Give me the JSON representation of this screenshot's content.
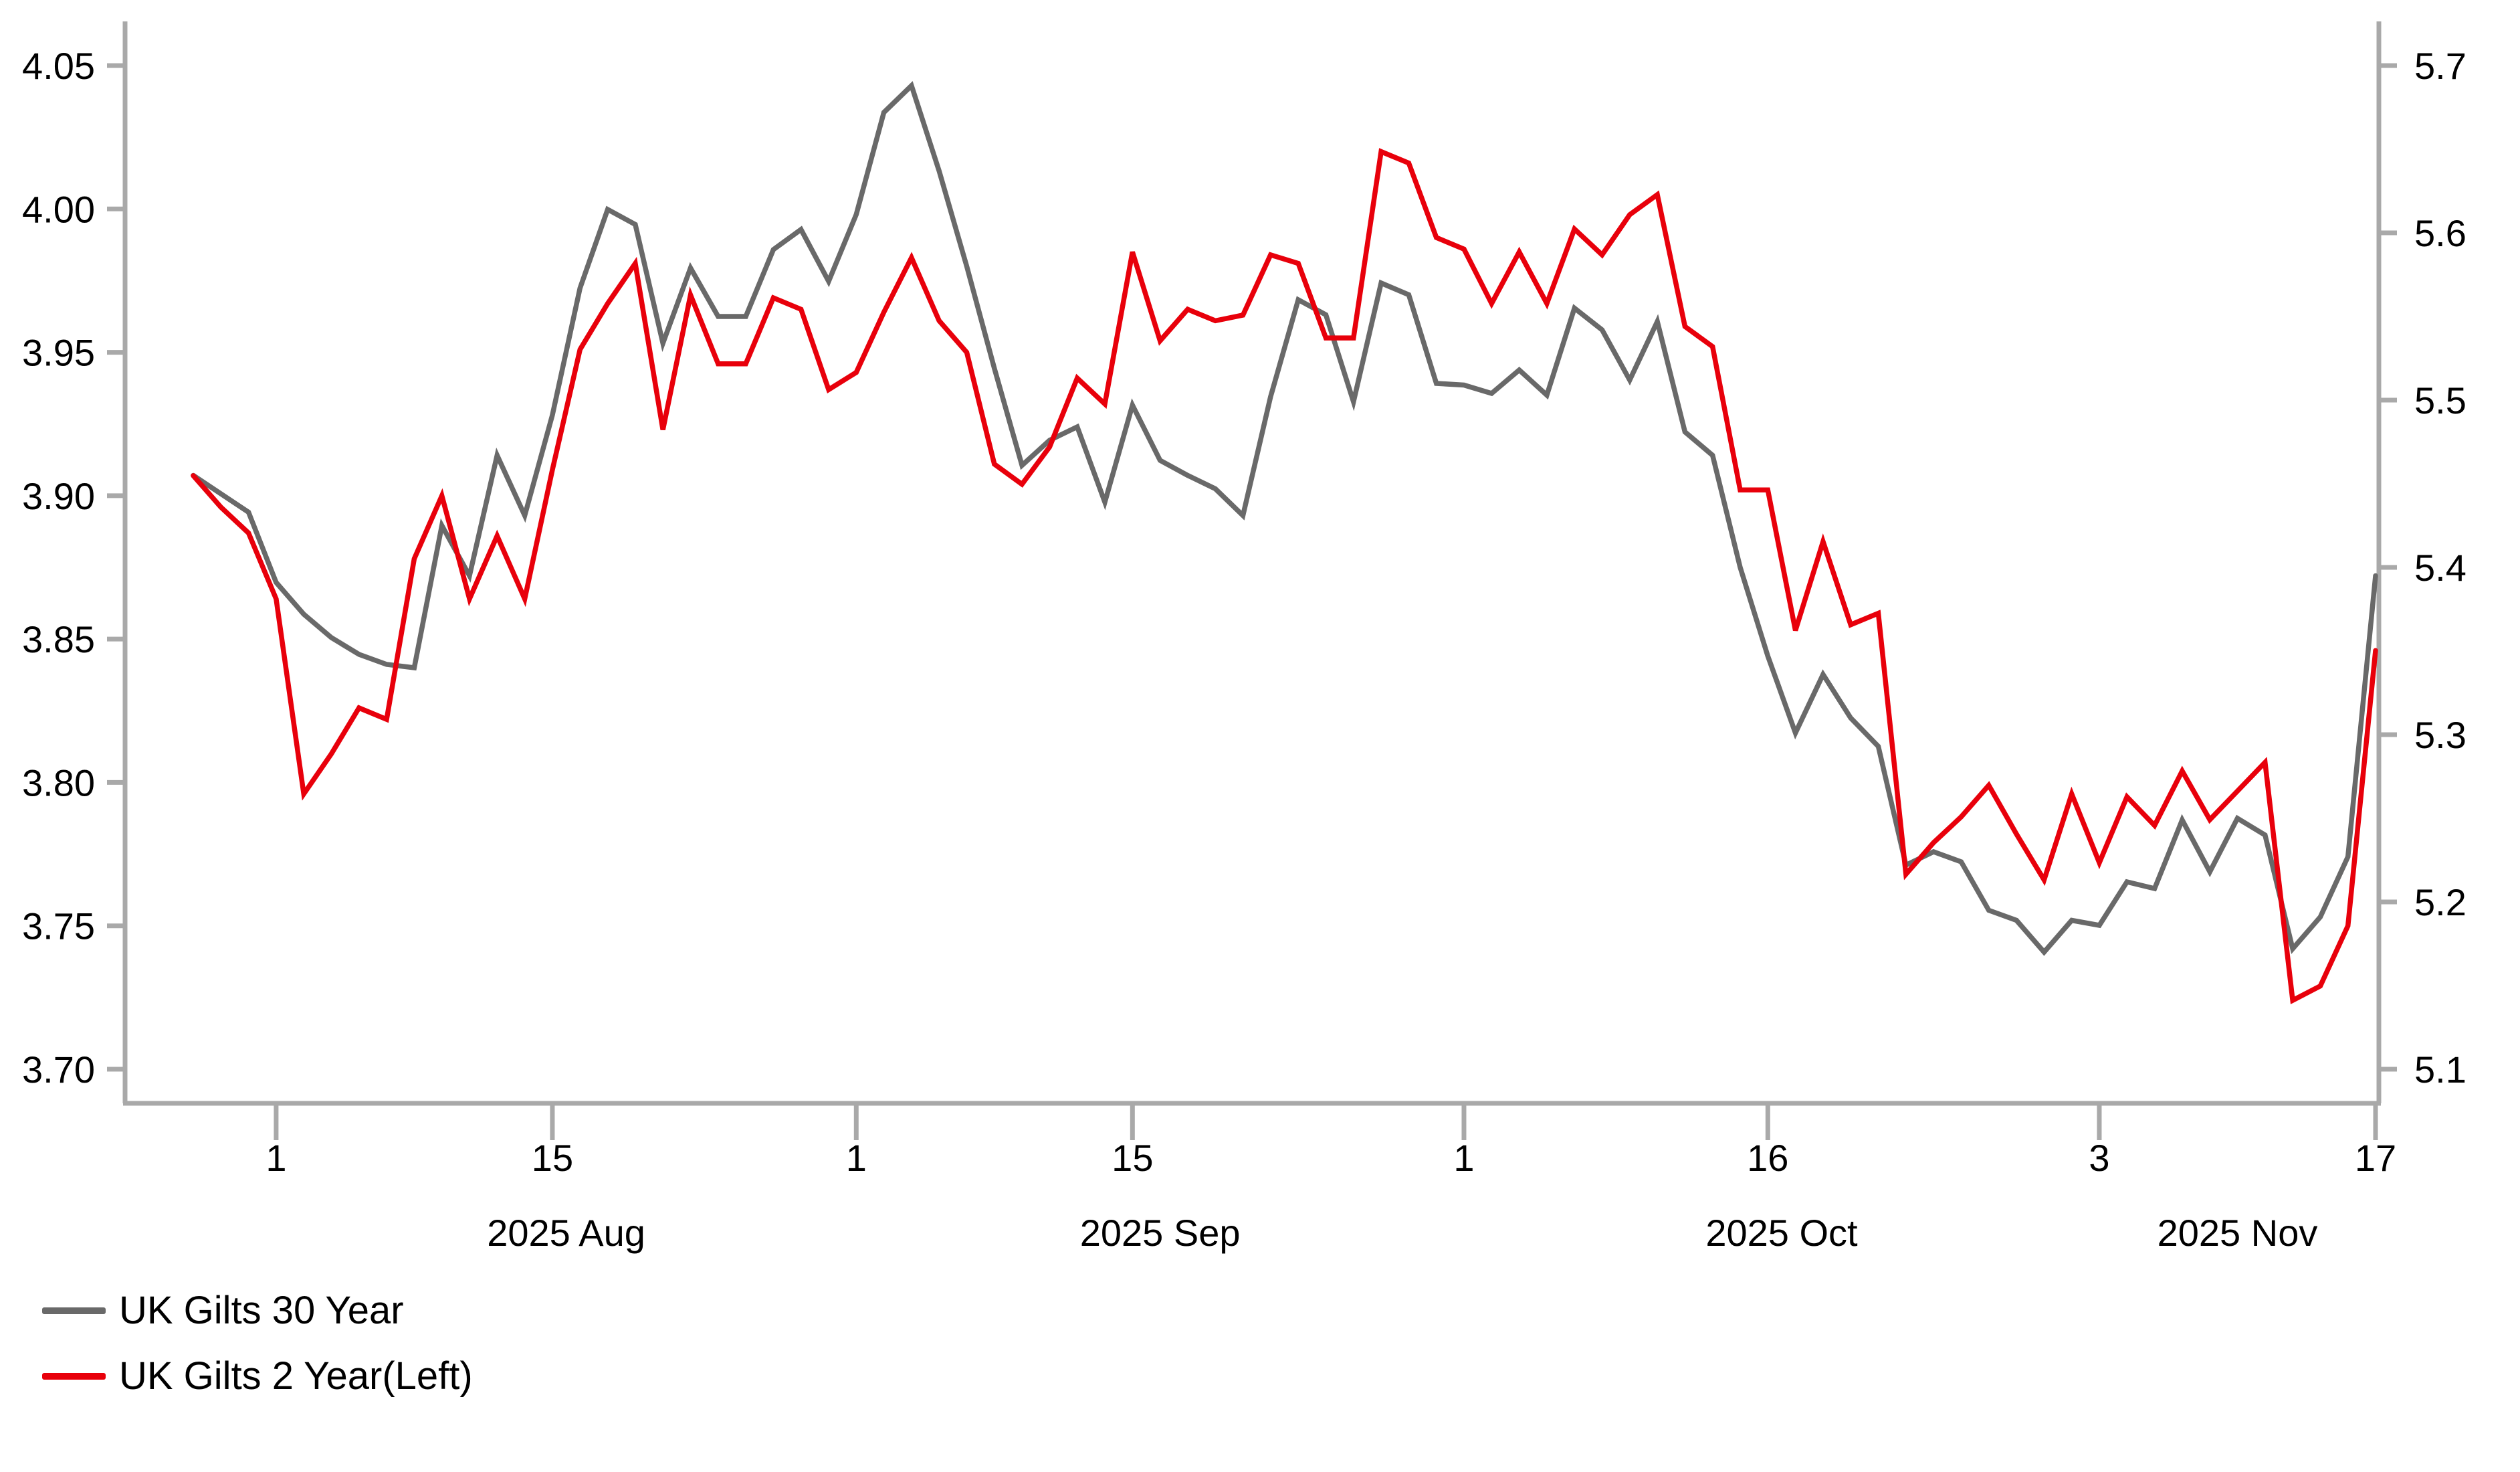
{
  "colors": {
    "background": "#ffffff",
    "axis": "#a9a9a9",
    "text": "#000000",
    "series_30y": "#696969",
    "series_2y": "#e8000b"
  },
  "legend": {
    "items": [
      {
        "label": "UK Gilts 30 Year",
        "color": "#696969"
      },
      {
        "label": "UK Gilts 2 Year(Left)",
        "color": "#e8000b"
      }
    ]
  },
  "chart_data": {
    "type": "line",
    "title": "",
    "xlabel": "",
    "ylabel_left": "",
    "ylabel_right": "",
    "grid": false,
    "legend_position": "bottom-left",
    "x": [
      "Jul 29",
      "Jul 30",
      "Jul 31",
      "Aug 1",
      "Aug 4",
      "Aug 5",
      "Aug 6",
      "Aug 7",
      "Aug 8",
      "Aug 11",
      "Aug 12",
      "Aug 13",
      "Aug 14",
      "Aug 15",
      "Aug 18",
      "Aug 19",
      "Aug 20",
      "Aug 21",
      "Aug 22",
      "Aug 25",
      "Aug 26",
      "Aug 27",
      "Aug 28",
      "Aug 29",
      "Sep 1",
      "Sep 2",
      "Sep 3",
      "Sep 4",
      "Sep 5",
      "Sep 8",
      "Sep 9",
      "Sep 10",
      "Sep 11",
      "Sep 12",
      "Sep 15",
      "Sep 16",
      "Sep 17",
      "Sep 18",
      "Sep 19",
      "Sep 22",
      "Sep 23",
      "Sep 24",
      "Sep 25",
      "Sep 26",
      "Sep 29",
      "Sep 30",
      "Oct 1",
      "Oct 2",
      "Oct 3",
      "Oct 6",
      "Oct 7",
      "Oct 8",
      "Oct 9",
      "Oct 10",
      "Oct 13",
      "Oct 14",
      "Oct 15",
      "Oct 16",
      "Oct 17",
      "Oct 20",
      "Oct 21",
      "Oct 22",
      "Oct 23",
      "Oct 24",
      "Oct 27",
      "Oct 28",
      "Oct 29",
      "Oct 30",
      "Oct 31",
      "Nov 3",
      "Nov 4",
      "Nov 5",
      "Nov 6",
      "Nov 7",
      "Nov 10",
      "Nov 11",
      "Nov 12",
      "Nov 13",
      "Nov 14",
      "Nov 17"
    ],
    "series": [
      {
        "name": "UK Gilts 30 Year",
        "axis": "right",
        "color": "#696969",
        "values": [
          5.455,
          5.444,
          5.433,
          5.391,
          5.372,
          5.358,
          5.348,
          5.342,
          5.34,
          5.425,
          5.395,
          5.467,
          5.431,
          5.491,
          5.567,
          5.614,
          5.605,
          5.534,
          5.579,
          5.55,
          5.55,
          5.59,
          5.602,
          5.571,
          5.611,
          5.672,
          5.688,
          5.637,
          5.58,
          5.519,
          5.461,
          5.476,
          5.484,
          5.439,
          5.497,
          5.464,
          5.455,
          5.447,
          5.431,
          5.502,
          5.56,
          5.551,
          5.499,
          5.57,
          5.563,
          5.51,
          5.509,
          5.504,
          5.518,
          5.503,
          5.555,
          5.542,
          5.512,
          5.547,
          5.481,
          5.467,
          5.4,
          5.347,
          5.301,
          5.336,
          5.31,
          5.293,
          5.222,
          5.23,
          5.224,
          5.195,
          5.189,
          5.17,
          5.189,
          5.186,
          5.212,
          5.208,
          5.249,
          5.218,
          5.25,
          5.24,
          5.172,
          5.191,
          5.227,
          5.395
        ]
      },
      {
        "name": "UK Gilts 2 Year(Left)",
        "axis": "left",
        "color": "#e8000b",
        "values": [
          3.907,
          3.896,
          3.887,
          3.864,
          3.796,
          3.81,
          3.826,
          3.822,
          3.878,
          3.9,
          3.864,
          3.886,
          3.864,
          3.909,
          3.951,
          3.967,
          3.981,
          3.923,
          3.97,
          3.946,
          3.946,
          3.969,
          3.965,
          3.937,
          3.943,
          3.964,
          3.983,
          3.961,
          3.95,
          3.911,
          3.904,
          3.917,
          3.941,
          3.932,
          3.985,
          3.954,
          3.965,
          3.961,
          3.963,
          3.984,
          3.981,
          3.955,
          3.955,
          4.02,
          4.016,
          3.99,
          3.986,
          3.967,
          3.985,
          3.967,
          3.993,
          3.984,
          3.998,
          4.005,
          3.959,
          3.952,
          3.902,
          3.902,
          3.853,
          3.884,
          3.855,
          3.859,
          3.768,
          3.779,
          3.788,
          3.799,
          3.782,
          3.766,
          3.796,
          3.772,
          3.795,
          3.785,
          3.804,
          3.787,
          3.797,
          3.807,
          3.724,
          3.729,
          3.75,
          3.846
        ]
      }
    ],
    "axes": {
      "left": {
        "min": 3.7,
        "max": 4.05,
        "tick_step": 0.05,
        "tick_labels": [
          "4.05",
          "4.00",
          "3.95",
          "3.90",
          "3.85",
          "3.80",
          "3.75",
          "3.70"
        ]
      },
      "right": {
        "min": 5.1,
        "max": 5.7,
        "tick_step": 0.1,
        "tick_labels": [
          "5.7",
          "5.6",
          "5.5",
          "5.4",
          "5.3",
          "5.2",
          "5.1"
        ]
      }
    },
    "x_ticks": [
      {
        "label": "1",
        "index": 3
      },
      {
        "label": "15",
        "index": 13
      },
      {
        "label": "1",
        "index": 24
      },
      {
        "label": "15",
        "index": 34
      },
      {
        "label": "1",
        "index": 46
      },
      {
        "label": "16",
        "index": 57
      },
      {
        "label": "3",
        "index": 69
      },
      {
        "label": "17",
        "index": 79
      }
    ],
    "month_labels": [
      {
        "label": "2025 Aug",
        "index": 13.5
      },
      {
        "label": "2025 Sep",
        "index": 35
      },
      {
        "label": "2025 Oct",
        "index": 57.5
      },
      {
        "label": "2025 Nov",
        "index": 74
      }
    ]
  }
}
